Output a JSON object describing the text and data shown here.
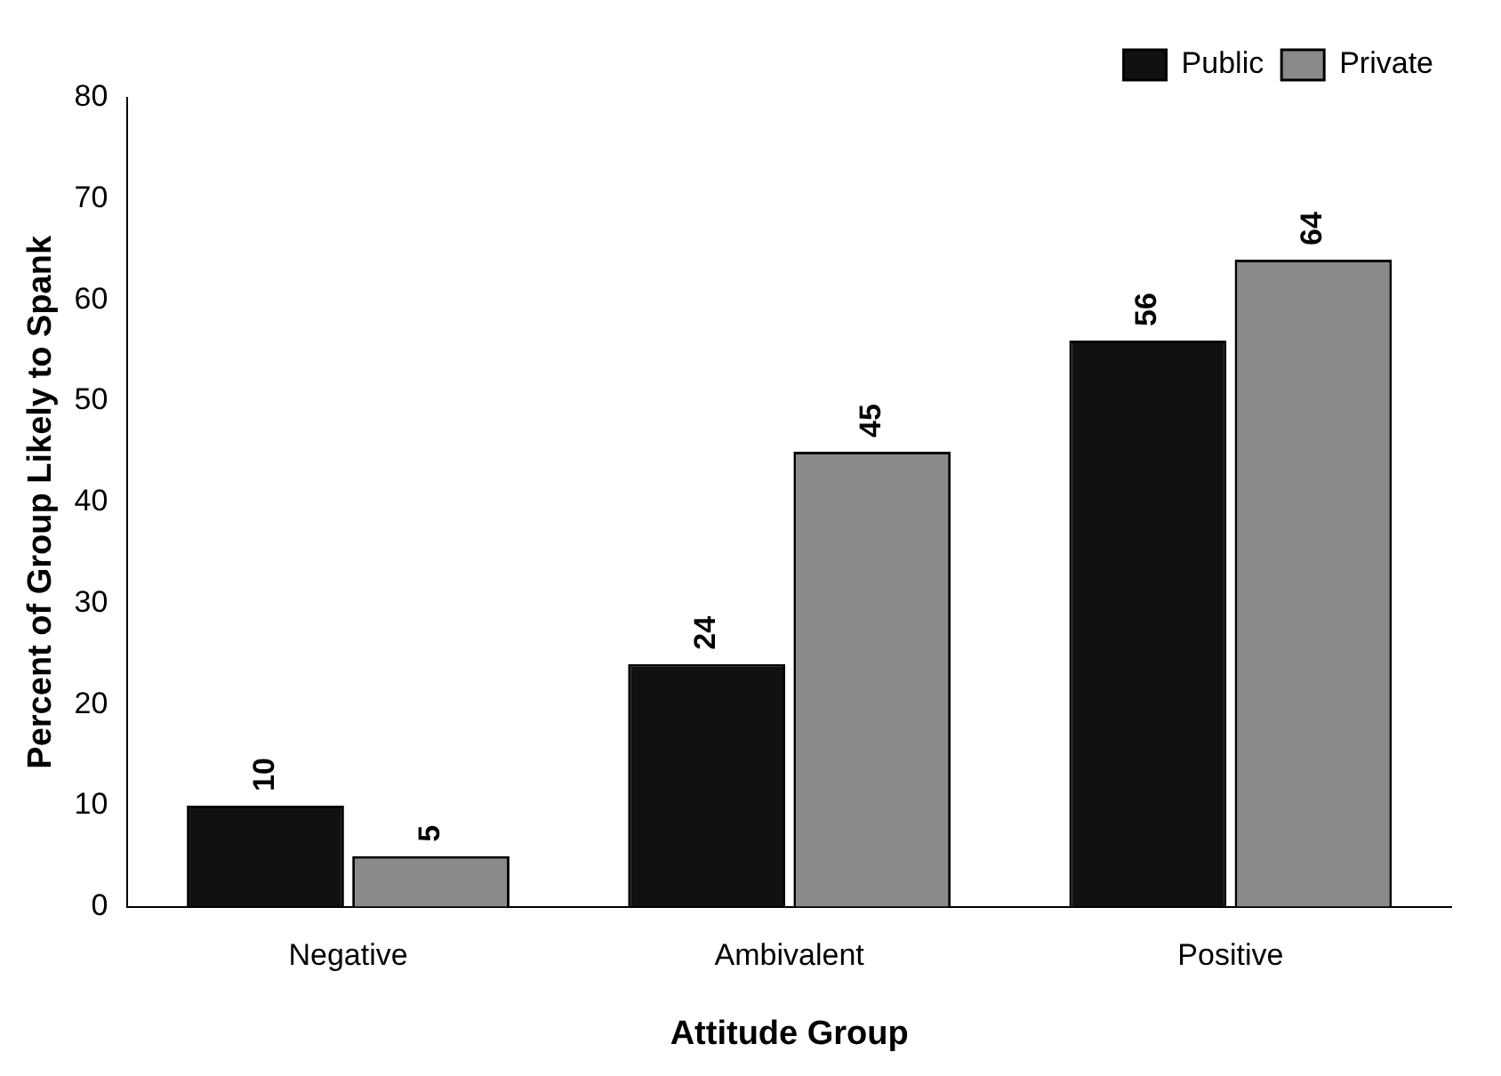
{
  "chart_data": {
    "type": "bar",
    "xlabel": "Attitude Group",
    "ylabel": "Percent of Group Likely to Spank",
    "categories": [
      "Negative",
      "Ambivalent",
      "Positive"
    ],
    "series": [
      {
        "name": "Public",
        "color": "#111111",
        "values": [
          10,
          24,
          56
        ]
      },
      {
        "name": "Private",
        "color": "#8a8a8a",
        "values": [
          5,
          45,
          64
        ]
      }
    ],
    "ylim": [
      0,
      80
    ],
    "yticks": [
      0,
      10,
      20,
      30,
      40,
      50,
      60,
      70,
      80
    ],
    "grid": false,
    "legend": "top right",
    "data_labels": true
  }
}
